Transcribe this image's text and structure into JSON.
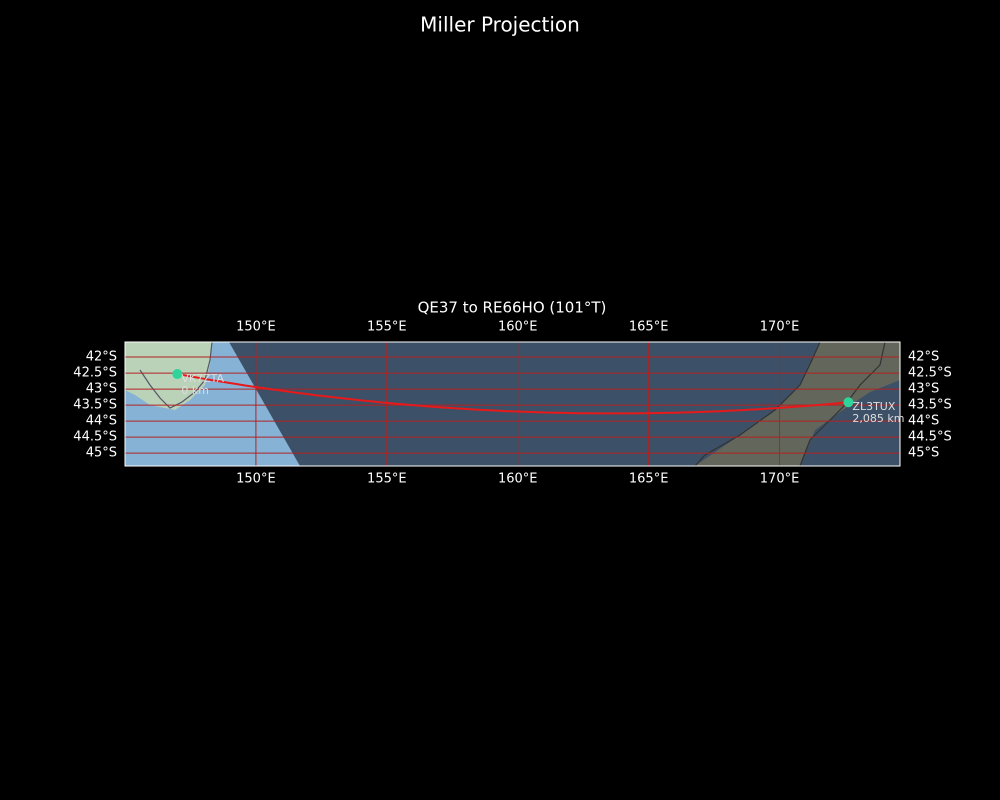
{
  "title": "Miller Projection",
  "map": {
    "subtitle": "QE37 to RE66HO (101°T)",
    "xlim": [
      145,
      174.6
    ],
    "ylim": [
      -45.4,
      -41.53
    ],
    "xticks": [
      {
        "value": 150,
        "label": "150°E"
      },
      {
        "value": 155,
        "label": "155°E"
      },
      {
        "value": 160,
        "label": "160°E"
      },
      {
        "value": 165,
        "label": "165°E"
      },
      {
        "value": 170,
        "label": "170°E"
      }
    ],
    "yticks": [
      {
        "value": -42,
        "label": "42°S"
      },
      {
        "value": -42.5,
        "label": "42.5°S"
      },
      {
        "value": -43,
        "label": "43°S"
      },
      {
        "value": -43.5,
        "label": "43.5°S"
      },
      {
        "value": -44,
        "label": "44°S"
      },
      {
        "value": -44.5,
        "label": "44.5°S"
      },
      {
        "value": -45,
        "label": "45°S"
      }
    ],
    "grid": true,
    "grid_color": "#b22222",
    "path_color": "#e8191a",
    "marker_color": "#2ed49a",
    "stations": [
      {
        "name": "VK7ZTA",
        "lon": 147.0,
        "lat": -42.53,
        "distance": "0 km"
      },
      {
        "name": "ZL3TUX",
        "lon": 172.63,
        "lat": -43.41,
        "distance": "2,085 km"
      }
    ]
  }
}
